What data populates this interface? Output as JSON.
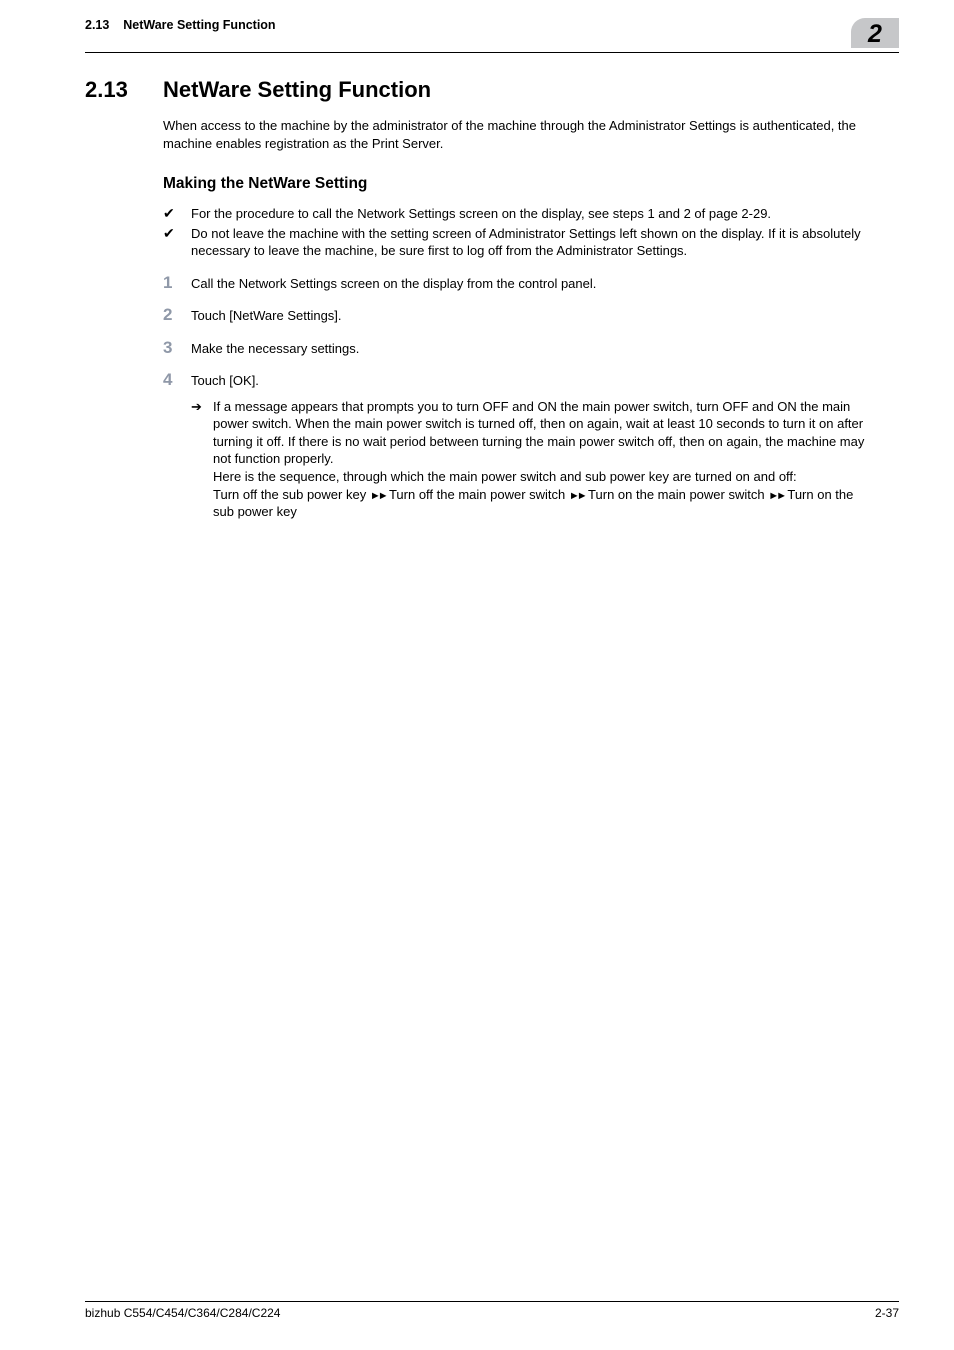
{
  "header": {
    "section_ref": "2.13",
    "section_name": "NetWare Setting Function",
    "chapter_number": "2"
  },
  "h1": {
    "number": "2.13",
    "title": "NetWare Setting Function"
  },
  "intro": "When access to the machine by the administrator of the machine through the Administrator Settings is authenticated, the machine enables registration as the Print Server.",
  "h2": "Making the NetWare Setting",
  "checks": [
    "For the procedure to call the Network Settings screen on the display, see steps 1 and 2 of page 2-29.",
    "Do not leave the machine with the setting screen of Administrator Settings left shown on the display. If it is absolutely necessary to leave the machine, be sure first to log off from the Administrator Settings."
  ],
  "steps": [
    {
      "n": "1",
      "text": "Call the Network Settings screen on the display from the control panel."
    },
    {
      "n": "2",
      "text": "Touch [NetWare Settings]."
    },
    {
      "n": "3",
      "text": "Make the necessary settings."
    },
    {
      "n": "4",
      "text": "Touch [OK]."
    }
  ],
  "substep": {
    "line1": "If a message appears that prompts you to turn OFF and ON the main power switch, turn OFF and ON the main power switch. When the main power switch is turned off, then on again, wait at least 10 seconds to turn it on after turning it off. If there is no wait period between turning the main power switch off, then on again, the machine may not function properly.",
    "line2": "Here is the sequence, through which the main power switch and sub power key are turned on and off:",
    "seq_a": "Turn off the sub power key ",
    "seq_b": " Turn off the main power switch ",
    "seq_c": " Turn on the main power switch ",
    "seq_d": " Turn on the sub power key"
  },
  "footer": {
    "left": "bizhub C554/C454/C364/C284/C224",
    "right": "2-37"
  },
  "glyphs": {
    "check": "✔",
    "arrow": "➔",
    "chev": "►►"
  },
  "colors": {
    "step_num": "#8f98a8",
    "tab_bg": "#c6c7c9",
    "text": "#000000",
    "bg": "#ffffff"
  },
  "typography": {
    "body_pt": 13,
    "h1_pt": 22,
    "h2_pt": 15.5,
    "stepnum_pt": 17
  }
}
